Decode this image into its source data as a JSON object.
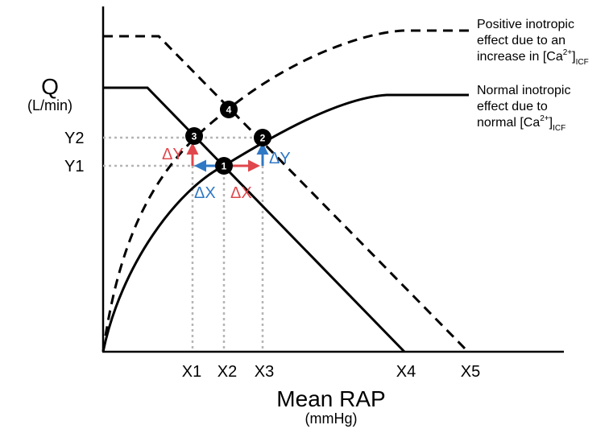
{
  "chart_data": {
    "type": "line",
    "xlabel": "Mean RAP",
    "xunit": "(mmHg)",
    "ylabel": "Q",
    "yunit": "(L/min)",
    "x_ticks": [
      "X1",
      "X2",
      "X3",
      "X4",
      "X5"
    ],
    "y_ticks": [
      "Y2",
      "Y1"
    ],
    "grid": false,
    "series": [
      {
        "name": "Positive inotropic effect due to an increase in [Ca2+]ICF",
        "style": "dashed",
        "role": "cardiac function curve"
      },
      {
        "name": "Normal inotropic effect due to normal [Ca2+]ICF",
        "style": "solid",
        "role": "cardiac function curve"
      },
      {
        "name": "",
        "style": "solid",
        "role": "venous return curve (normal)"
      },
      {
        "name": "",
        "style": "dashed",
        "role": "venous return curve (shifted)"
      }
    ],
    "points": [
      {
        "label": "1",
        "x": "X2",
        "y": "Y1"
      },
      {
        "label": "2",
        "x": "X3",
        "y": "Y2"
      },
      {
        "label": "3",
        "x": "X1",
        "y": "Y2"
      },
      {
        "label": "4",
        "x": "",
        "y": ""
      }
    ],
    "annotations": [
      {
        "text": "ΔY",
        "color": "#e0474c"
      },
      {
        "text": "ΔY",
        "color": "#2f78c4"
      },
      {
        "text": "ΔX",
        "color": "#2f78c4"
      },
      {
        "text": "ΔX",
        "color": "#e0474c"
      }
    ],
    "legend_placement": "right",
    "colors": {
      "red": "#e0474c",
      "blue": "#2f78c4",
      "grid": "#b5b5b5"
    }
  },
  "legend": {
    "positive": {
      "line1": "Positive inotropic",
      "line2": "effect due to an",
      "line3_pre": "increase in [Ca",
      "sup": "2+",
      "line3_mid": "]",
      "sub": "ICF"
    },
    "normal": {
      "line1": "Normal inotropic",
      "line2": "effect due to",
      "line3_pre": "normal [Ca",
      "sup": "2+",
      "line3_mid": "]",
      "sub": "ICF"
    }
  }
}
